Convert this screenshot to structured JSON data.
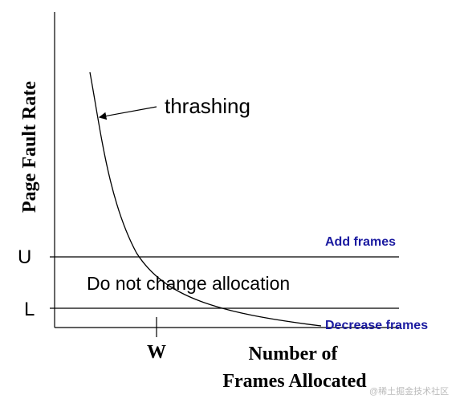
{
  "axes": {
    "y_label": "Page Fault Rate",
    "x_label_line1": "Number of",
    "x_label_line2": "Frames Allocated"
  },
  "levels": {
    "upper": "U",
    "lower": "L",
    "above_upper": "Add frames",
    "between": "Do not change allocation",
    "below_lower": "Decrease frames"
  },
  "annotations": {
    "curve": "thrashing",
    "x_marker": "W"
  },
  "watermark": "@稀土掘金技术社区"
}
